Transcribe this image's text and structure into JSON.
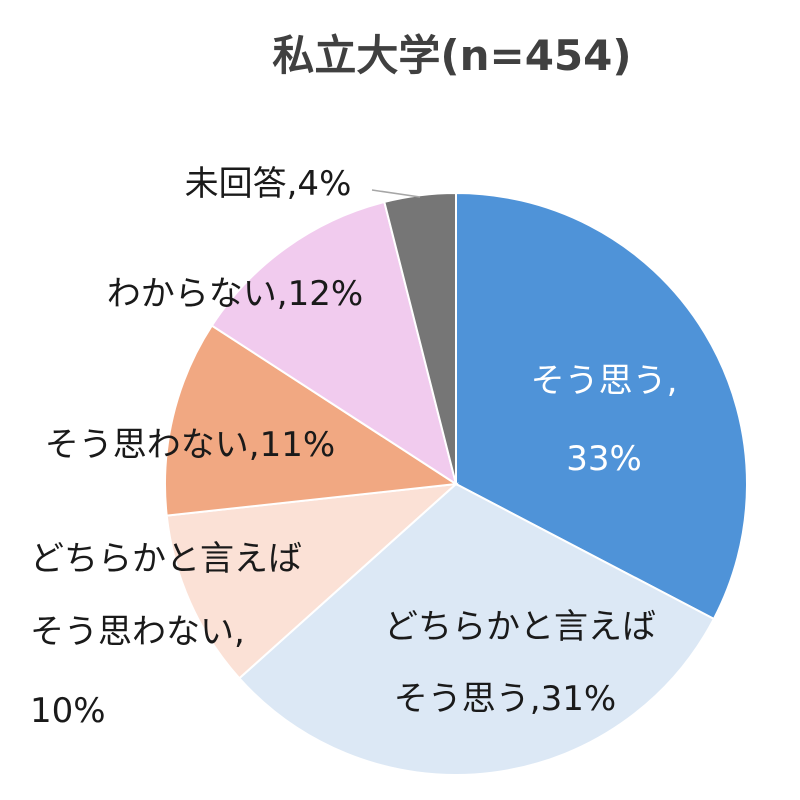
{
  "chart_data": {
    "type": "pie",
    "title": "私立大学(n=454)",
    "slices": [
      {
        "label": "そう思う",
        "value": 33,
        "display": "33%",
        "color": "#4f93d8"
      },
      {
        "label": "どちらかと言えばそう思う",
        "value": 31,
        "display": "31%",
        "color": "#dce8f5"
      },
      {
        "label": "どちらかと言えばそう思わない",
        "value": 10,
        "display": "10%",
        "color": "#fbe1d6"
      },
      {
        "label": "そう思わない",
        "value": 11,
        "display": "11%",
        "color": "#f1a882"
      },
      {
        "label": "わからない",
        "value": 12,
        "display": "12%",
        "color": "#f1cbee"
      },
      {
        "label": "未回答",
        "value": 4,
        "display": "4%",
        "color": "#767676"
      }
    ],
    "label_lines": {
      "s0": [
        "そう思う,",
        "33%"
      ],
      "s1": [
        "どちらかと言えば",
        "そう思う,31%"
      ],
      "s2": [
        "どちらかと言えば",
        "そう思わない,",
        "10%"
      ],
      "s3": [
        "そう思わない,11%"
      ],
      "s4": [
        "わからない,12%"
      ],
      "s5": [
        "未回答,4%"
      ]
    }
  }
}
